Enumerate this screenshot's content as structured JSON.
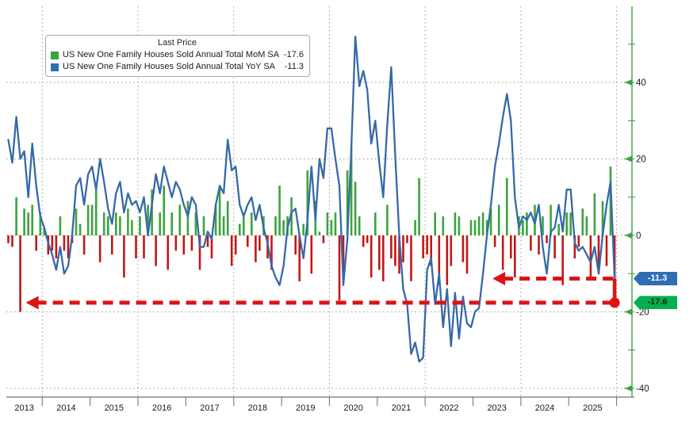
{
  "legend": {
    "title": "Last Price",
    "items": [
      {
        "label": "US New One Family Houses Sold Annual Total MoM SA",
        "value": "-17.6",
        "swatch": "#3DA33D"
      },
      {
        "label": "US New One Family Houses Sold Annual Total YoY SA",
        "value": "-11.3",
        "swatch": "#2F6EB5"
      }
    ]
  },
  "badges": [
    {
      "text": "-11.3",
      "value": -11.3,
      "bg": "#2F6EB5",
      "fg": "#ffffff"
    },
    {
      "text": "-17.6",
      "value": -17.6,
      "bg": "#00B14E",
      "fg": "#0c2410"
    }
  ],
  "y_axis": {
    "major_ticks": [
      40,
      20,
      0,
      -20,
      -40
    ],
    "minor_ticks": [
      50,
      30,
      10,
      -10,
      -30
    ],
    "axis_color": "#3FA23F",
    "label_color": "#1a1a1a"
  },
  "x_axis": {
    "years": [
      "2013",
      "2014",
      "2015",
      "2016",
      "2017",
      "2018",
      "2019",
      "2020",
      "2021",
      "2022",
      "2023",
      "2024",
      "2025"
    ],
    "axis_color": "#8a8a8a",
    "label_color": "#1a1a1a"
  },
  "chart_data": {
    "type": "bar",
    "subtype": "monthly bar (MoM) + line (YoY) combo",
    "start_month": "2013-04",
    "end_month": "2025-12",
    "x_unit": "month",
    "ylim": [
      -42,
      60
    ],
    "grid": {
      "horizontal_at": [
        40,
        20,
        0,
        -20,
        -40
      ],
      "vertical_at_january_of": [
        2014,
        2016,
        2018,
        2020,
        2022,
        2024,
        2026
      ],
      "style": "dotted"
    },
    "series": [
      {
        "name": "US New One Family Houses Sold Annual Total MoM SA",
        "type": "bar",
        "last": -17.6,
        "color_positive": "#3DA33D",
        "color_negative": "#C01818",
        "values": [
          -2,
          -3,
          10,
          -20,
          7,
          6,
          8,
          -4,
          6,
          2,
          -5,
          -4,
          -6,
          5,
          -4,
          -6,
          -2,
          7,
          3,
          -5,
          8,
          8,
          13,
          -7,
          6,
          5,
          -5,
          6,
          5,
          -11,
          7,
          4,
          -6,
          5,
          -6,
          8,
          12,
          -8,
          6,
          13,
          -9,
          6,
          -4,
          8,
          -5,
          9,
          -4,
          6,
          -9,
          5,
          -3,
          -6,
          8,
          13,
          5,
          9,
          -8,
          -5,
          3,
          5,
          -3,
          6,
          -7,
          -4,
          5,
          -6,
          -9,
          5,
          13,
          4,
          5,
          10,
          -5,
          -12,
          3,
          17,
          -10,
          9,
          1,
          -2,
          6,
          4,
          6,
          -17,
          -10,
          17,
          23,
          14,
          5,
          -3,
          -2,
          -11,
          6,
          -9,
          -12,
          8,
          -6,
          -8,
          -10,
          -7,
          -2,
          -12,
          4,
          15,
          -6,
          -5,
          -8,
          6,
          -13,
          5,
          -13,
          -8,
          6,
          5,
          -7,
          -10,
          4,
          4,
          5,
          6,
          4,
          7,
          -3,
          8,
          -9,
          15,
          -6,
          -11,
          5,
          4,
          6,
          -4,
          8,
          -5,
          5,
          -2,
          8,
          -6,
          3,
          -13,
          6,
          6,
          -6,
          -3,
          7,
          5,
          -11,
          11,
          -10,
          9,
          -8,
          18,
          -17.6
        ]
      },
      {
        "name": "US New One Family Houses Sold Annual Total YoY SA",
        "type": "line",
        "last": -11.3,
        "color": "#3569A8",
        "values": [
          25,
          19,
          31,
          20,
          22,
          10,
          24,
          13,
          5,
          2,
          -2,
          -5,
          -9,
          -3,
          -10,
          -8,
          0,
          13,
          15,
          8,
          16,
          18,
          12,
          20,
          14,
          7,
          3,
          11,
          14,
          6,
          11,
          8,
          9,
          6,
          10,
          0,
          8,
          16,
          11,
          18,
          14,
          10,
          14,
          12,
          8,
          5,
          10,
          8,
          -3,
          -3,
          1,
          -1,
          8,
          13,
          11,
          25,
          17,
          18,
          8,
          5,
          8,
          10,
          4,
          8,
          2,
          -2,
          -8,
          -11,
          -13,
          -8,
          2,
          6,
          7,
          0,
          -6,
          4,
          18,
          4,
          20,
          15,
          28,
          28,
          20,
          13,
          -13,
          -1,
          23,
          52,
          39,
          43,
          38,
          24,
          30,
          19,
          10,
          29,
          44,
          21,
          0,
          -14,
          -18,
          -31,
          -28,
          -33,
          -32,
          -9,
          -6,
          -18,
          -10,
          -24,
          -14,
          -29,
          -15,
          -27,
          -16,
          -23,
          -24,
          -20,
          -19,
          -10,
          0,
          8,
          18,
          24,
          31,
          37,
          30,
          10,
          2,
          5,
          4,
          6,
          3,
          8,
          -3,
          -10,
          1,
          2,
          8,
          1,
          12,
          12,
          -2,
          -4,
          -3,
          -5,
          -7,
          -3,
          -10,
          0,
          8,
          14,
          -11.3
        ]
      }
    ],
    "annotations": [
      {
        "type": "dashed_arrow",
        "color": "#E01212",
        "y_value": -11.3,
        "from_month": "2025-12",
        "points_to_month": "2023-04"
      },
      {
        "type": "dashed_arrow",
        "color": "#E01212",
        "y_value": -17.6,
        "from_month": "2025-12",
        "points_to_month": "2013-07"
      },
      {
        "type": "dot",
        "color": "#E01212",
        "month": "2025-12",
        "y_value": -17.6
      }
    ]
  }
}
